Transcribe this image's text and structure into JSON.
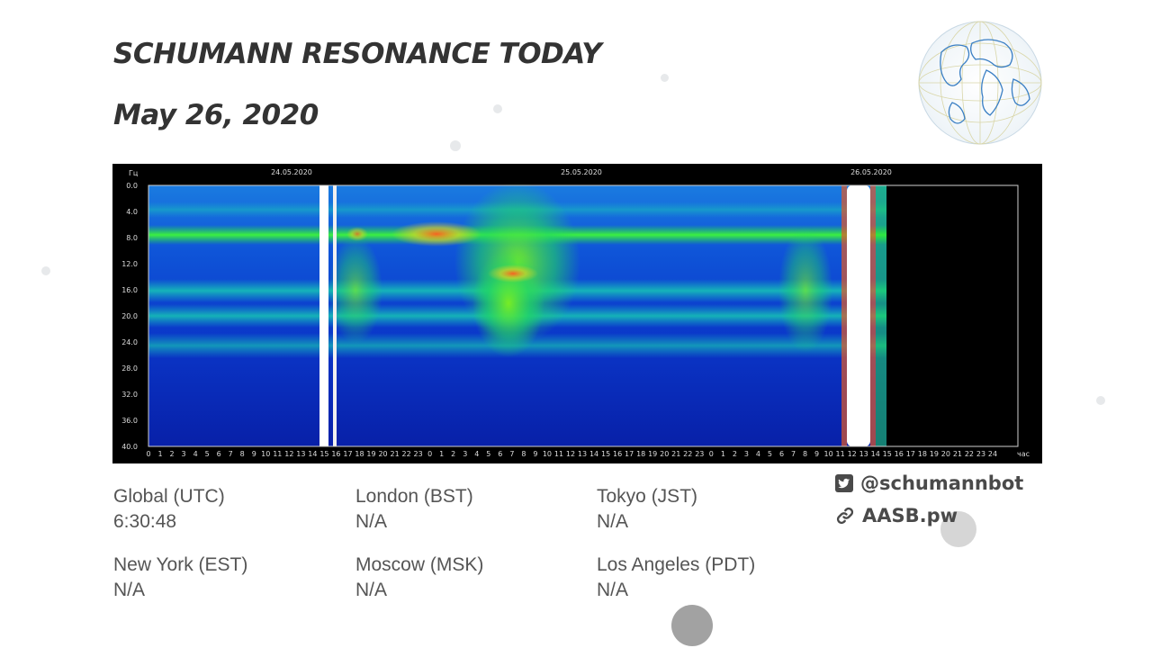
{
  "title": "SCHUMANN RESONANCE TODAY",
  "date": "May 26, 2020",
  "spectrogram": {
    "y_unit": "Гц",
    "x_unit": "час",
    "dates": [
      "24.05.2020",
      "25.05.2020",
      "26.05.2020"
    ],
    "y_ticks": [
      "0.0",
      "4.0",
      "8.0",
      "12.0",
      "16.0",
      "20.0",
      "24.0",
      "28.0",
      "32.0",
      "36.0",
      "40.0"
    ],
    "hour_ticks_day1": [
      "0",
      "1",
      "2",
      "3",
      "4",
      "5",
      "6",
      "7",
      "8",
      "9",
      "10",
      "11",
      "12",
      "13",
      "14",
      "15",
      "16",
      "17",
      "18",
      "19",
      "20",
      "21",
      "22",
      "23"
    ],
    "hour_ticks_day2": [
      "0",
      "1",
      "2",
      "3",
      "4",
      "5",
      "6",
      "7",
      "8",
      "9",
      "10",
      "11",
      "12",
      "13",
      "14",
      "15",
      "16",
      "17",
      "18",
      "19",
      "20",
      "21",
      "22",
      "23"
    ],
    "hour_ticks_day3": [
      "0",
      "1",
      "2",
      "3",
      "4",
      "5",
      "6",
      "7",
      "8",
      "9",
      "10",
      "11",
      "12",
      "13",
      "14",
      "15",
      "16",
      "17",
      "18",
      "19",
      "20",
      "21",
      "22",
      "23",
      "24"
    ],
    "colors": {
      "background": "#000000",
      "base": "#0a2fc8",
      "band": "#22e040",
      "hot": "#ff6a2a",
      "saturated": "#ffffff"
    }
  },
  "timezones": [
    {
      "label": "Global (UTC)",
      "value": "6:30:48"
    },
    {
      "label": "London (BST)",
      "value": "N/A"
    },
    {
      "label": "Tokyo (JST)",
      "value": "N/A"
    },
    {
      "label": "New York (EST)",
      "value": "N/A"
    },
    {
      "label": "Moscow (MSK)",
      "value": "N/A"
    },
    {
      "label": "Los Angeles (PDT)",
      "value": "N/A"
    }
  ],
  "social": {
    "twitter": "@schumannbot",
    "website": "AASB.pw"
  }
}
